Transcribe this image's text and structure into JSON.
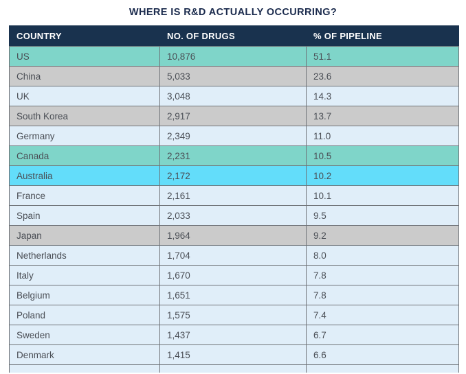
{
  "title": "WHERE IS R&D ACTUALLY OCCURRING?",
  "colors": {
    "title_text": "#1b2b4d",
    "header_bg": "#19324e",
    "header_text": "#ffffff",
    "row_teal": "#7fd5c9",
    "row_gray": "#cbcbcb",
    "row_cyan": "#63ddfa",
    "row_light_blue": "#e0eef9",
    "cell_text": "#4a4e55",
    "border": "#6e7277"
  },
  "chart_data": {
    "type": "table",
    "title": "WHERE IS R&D ACTUALLY OCCURRING?",
    "columns": [
      "COUNTRY",
      "NO. OF DRUGS",
      "% OF PIPELINE"
    ],
    "rows": [
      {
        "country": "US",
        "drugs": "10,876",
        "pipeline": "51.1",
        "highlight": "teal"
      },
      {
        "country": "China",
        "drugs": "5,033",
        "pipeline": "23.6",
        "highlight": "gray"
      },
      {
        "country": "UK",
        "drugs": "3,048",
        "pipeline": "14.3",
        "highlight": "blue"
      },
      {
        "country": "South Korea",
        "drugs": "2,917",
        "pipeline": "13.7",
        "highlight": "gray"
      },
      {
        "country": "Germany",
        "drugs": "2,349",
        "pipeline": "11.0",
        "highlight": "blue"
      },
      {
        "country": "Canada",
        "drugs": "2,231",
        "pipeline": "10.5",
        "highlight": "teal"
      },
      {
        "country": "Australia",
        "drugs": "2,172",
        "pipeline": "10.2",
        "highlight": "cyan"
      },
      {
        "country": "France",
        "drugs": "2,161",
        "pipeline": "10.1",
        "highlight": "blue"
      },
      {
        "country": "Spain",
        "drugs": "2,033",
        "pipeline": "9.5",
        "highlight": "blue"
      },
      {
        "country": "Japan",
        "drugs": "1,964",
        "pipeline": "9.2",
        "highlight": "gray"
      },
      {
        "country": "Netherlands",
        "drugs": "1,704",
        "pipeline": "8.0",
        "highlight": "blue"
      },
      {
        "country": "Italy",
        "drugs": "1,670",
        "pipeline": "7.8",
        "highlight": "blue"
      },
      {
        "country": "Belgium",
        "drugs": "1,651",
        "pipeline": "7.8",
        "highlight": "blue"
      },
      {
        "country": "Poland",
        "drugs": "1,575",
        "pipeline": "7.4",
        "highlight": "blue"
      },
      {
        "country": "Sweden",
        "drugs": "1,437",
        "pipeline": "6.7",
        "highlight": "blue"
      },
      {
        "country": "Denmark",
        "drugs": "1,415",
        "pipeline": "6.6",
        "highlight": "blue"
      }
    ],
    "partial_row_at_bottom": true
  }
}
